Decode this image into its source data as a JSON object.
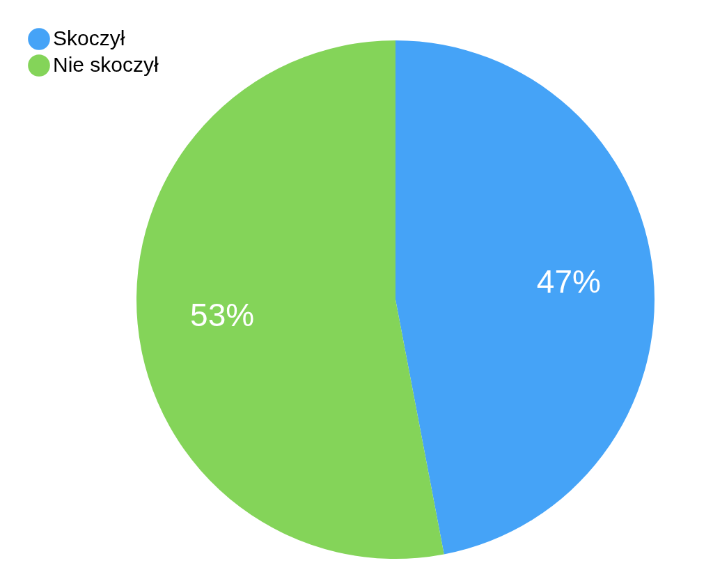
{
  "chart_data": {
    "type": "pie",
    "categories": [
      "Skoczył",
      "Nie skoczył"
    ],
    "values": [
      47,
      53
    ],
    "colors": [
      "#45a3f7",
      "#84d459"
    ],
    "value_labels": [
      "47%",
      "53%"
    ],
    "legend": "top left"
  }
}
